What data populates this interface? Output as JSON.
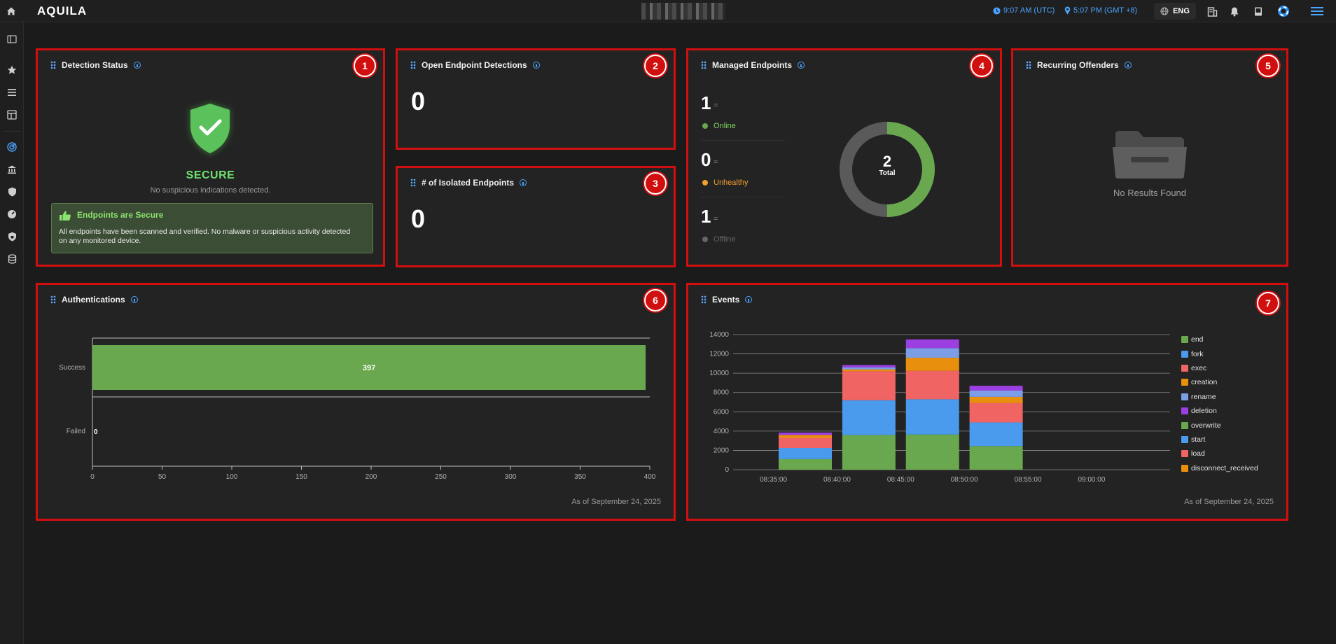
{
  "app": {
    "logo": "AQUILA",
    "time_utc": "9:07 AM (UTC)",
    "time_local": "5:07 PM (GMT +8)",
    "language": "ENG"
  },
  "topbar_icons": [
    "clock-icon",
    "location-pin-icon",
    "globe-icon",
    "building-icon",
    "bell-icon",
    "book-icon",
    "help-lifebuoy-icon",
    "hamburger-menu-icon"
  ],
  "sidebar_icons": [
    "panel-toggle-icon",
    "star-icon",
    "list-icon",
    "layout-icon",
    "radar-icon",
    "bank-icon",
    "shield-icon",
    "gauge-icon",
    "shield-lock-icon",
    "database-icon"
  ],
  "panels": {
    "detection_status": {
      "title": "Detection Status",
      "badge": "1",
      "status": "SECURE",
      "subtitle": "No suspicious indications detected.",
      "box_title": "Endpoints are Secure",
      "box_text": "All endpoints have been scanned and verified. No malware or suspicious activity detected on any monitored device."
    },
    "open_endpoint_detections": {
      "title": "Open Endpoint Detections",
      "badge": "2",
      "value": "0"
    },
    "isolated_endpoints": {
      "title": "# of Isolated Endpoints",
      "badge": "3",
      "value": "0"
    },
    "managed_endpoints": {
      "title": "Managed Endpoints",
      "badge": "4",
      "online_count": "1",
      "online_label": "Online",
      "unhealthy_count": "0",
      "unhealthy_label": "Unhealthy",
      "offline_count": "1",
      "offline_label": "Offline",
      "eq_sign": "=",
      "total": "2",
      "total_label": "Total",
      "donut_fraction_online": 0.5
    },
    "recurring_offenders": {
      "title": "Recurring Offenders",
      "badge": "5",
      "empty_text": "No Results Found"
    },
    "authentications": {
      "title": "Authentications",
      "badge": "6",
      "as_of": "As of September 24, 2025"
    },
    "events": {
      "title": "Events",
      "badge": "7",
      "as_of": "As of September 24, 2025"
    }
  },
  "colors": {
    "accent_blue": "#4aa3ff",
    "secure_green": "#6fe26f",
    "bar_green": "#6aa84f",
    "unhealthy_orange": "#f0a030",
    "offline_gray": "#666666",
    "annotation_red": "#d10f0f"
  },
  "chart_data": [
    {
      "type": "bar",
      "orientation": "horizontal",
      "categories": [
        "Success",
        "Failed"
      ],
      "values": [
        397,
        0
      ],
      "data_labels": [
        "397",
        "0"
      ],
      "xlim": [
        0,
        400
      ],
      "xticks": [
        "0",
        "50",
        "100",
        "150",
        "200",
        "250",
        "300",
        "350",
        "400"
      ],
      "grid": false
    },
    {
      "type": "bar",
      "stacked": true,
      "x": [
        "08:35:00",
        "08:40:00",
        "08:45:00",
        "08:50:00",
        "08:55:00",
        "09:00:00"
      ],
      "categories": [
        "08:37:30",
        "08:42:30",
        "08:47:30",
        "08:52:30"
      ],
      "ylim": [
        0,
        14000
      ],
      "yticks": [
        "0",
        "2000",
        "4000",
        "6000",
        "8000",
        "10000",
        "12000",
        "14000"
      ],
      "grid": true,
      "legend_position": "right",
      "series": [
        {
          "name": "end",
          "color": "#6aa84f",
          "values": [
            1100,
            3600,
            3650,
            2450
          ]
        },
        {
          "name": "fork",
          "color": "#4a9aee",
          "values": [
            1150,
            3600,
            3650,
            2450
          ]
        },
        {
          "name": "exec",
          "color": "#f06464",
          "values": [
            1050,
            3000,
            2950,
            2000
          ]
        },
        {
          "name": "creation",
          "color": "#e8900e",
          "values": [
            300,
            200,
            1350,
            650
          ]
        },
        {
          "name": "rename",
          "color": "#7c9ee6",
          "values": [
            0,
            200,
            1000,
            650
          ]
        },
        {
          "name": "deletion",
          "color": "#9b3fe0",
          "values": [
            250,
            250,
            900,
            500
          ]
        },
        {
          "name": "overwrite",
          "color": "#6aa84f",
          "values": [
            0,
            0,
            0,
            0
          ]
        },
        {
          "name": "start",
          "color": "#4a9aee",
          "values": [
            0,
            0,
            0,
            0
          ]
        },
        {
          "name": "load",
          "color": "#f06464",
          "values": [
            0,
            0,
            0,
            0
          ]
        },
        {
          "name": "disconnect_received",
          "color": "#e8900e",
          "values": [
            0,
            0,
            0,
            0
          ]
        }
      ]
    }
  ]
}
